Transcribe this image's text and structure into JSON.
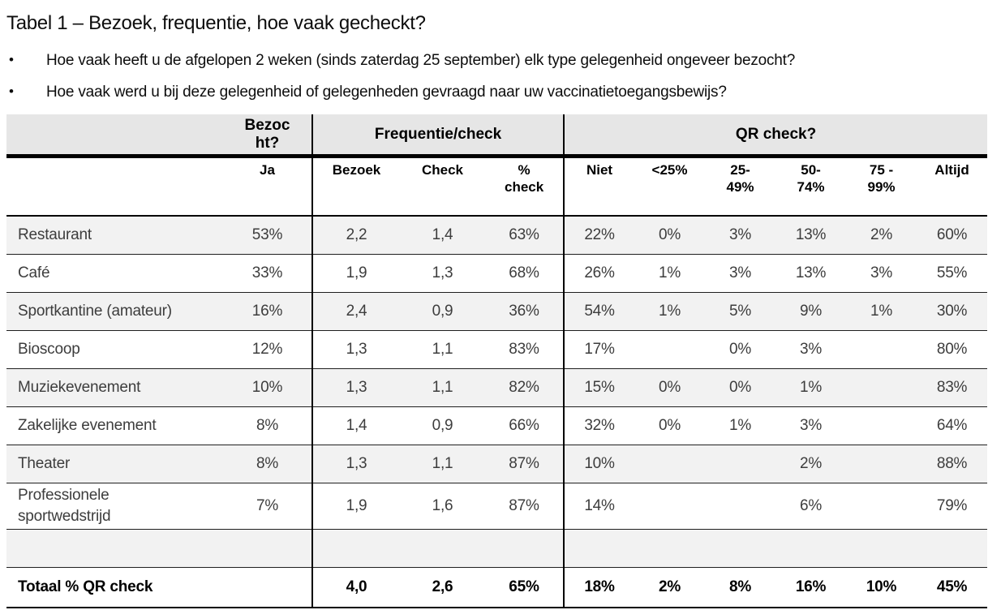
{
  "page": {
    "title": "Tabel 1 – Bezoek, frequentie, hoe vaak gecheckt?",
    "bullet_icon": "•",
    "bullets": [
      "Hoe vaak heeft u de afgelopen 2 weken (sinds zaterdag 25 september) elk type gelegenheid ongeveer bezocht?",
      "Hoe vaak werd u bij deze gelegenheid of gelegenheden gevraagd naar uw vaccinatietoegangsbewijs?"
    ]
  },
  "table": {
    "groups": [
      {
        "label": "Bezocht?",
        "span": 1
      },
      {
        "label": "Frequentie/check",
        "span": 3
      },
      {
        "label": "QR check?",
        "span": 6
      }
    ],
    "columns": [
      "",
      "Ja",
      "Bezoek",
      "Check",
      "% check",
      "Niet",
      "<25%",
      "25-49%",
      "50-74%",
      "75 - 99%",
      "Altijd"
    ],
    "rows": [
      {
        "label": "Restaurant",
        "values": [
          "53%",
          "2,2",
          "1,4",
          "63%",
          "22%",
          "0%",
          "3%",
          "13%",
          "2%",
          "60%"
        ]
      },
      {
        "label": "Café",
        "values": [
          "33%",
          "1,9",
          "1,3",
          "68%",
          "26%",
          "1%",
          "3%",
          "13%",
          "3%",
          "55%"
        ]
      },
      {
        "label": "Sportkantine (amateur)",
        "values": [
          "16%",
          "2,4",
          "0,9",
          "36%",
          "54%",
          "1%",
          "5%",
          "9%",
          "1%",
          "30%"
        ]
      },
      {
        "label": "Bioscoop",
        "values": [
          "12%",
          "1,3",
          "1,1",
          "83%",
          "17%",
          "",
          "0%",
          "3%",
          "",
          "80%"
        ]
      },
      {
        "label": "Muziekevenement",
        "values": [
          "10%",
          "1,3",
          "1,1",
          "82%",
          "15%",
          "0%",
          "0%",
          "1%",
          "",
          "83%"
        ]
      },
      {
        "label": "Zakelijke evenement",
        "values": [
          "8%",
          "1,4",
          "0,9",
          "66%",
          "32%",
          "0%",
          "1%",
          "3%",
          "",
          "64%"
        ]
      },
      {
        "label": "Theater",
        "values": [
          "8%",
          "1,3",
          "1,1",
          "87%",
          "10%",
          "",
          "",
          "2%",
          "",
          "88%"
        ]
      },
      {
        "label": "Professionele sportwedstrijd",
        "values": [
          "7%",
          "1,9",
          "1,6",
          "87%",
          "14%",
          "",
          "",
          "6%",
          "",
          "79%"
        ]
      },
      {
        "label": "",
        "values": [
          "",
          "",
          "",
          "",
          "",
          "",
          "",
          "",
          "",
          ""
        ]
      }
    ],
    "total": {
      "label": "Totaal % QR check",
      "values": [
        "",
        "4,0",
        "2,6",
        "65%",
        "18%",
        "2%",
        "8%",
        "16%",
        "10%",
        "45%"
      ]
    }
  }
}
